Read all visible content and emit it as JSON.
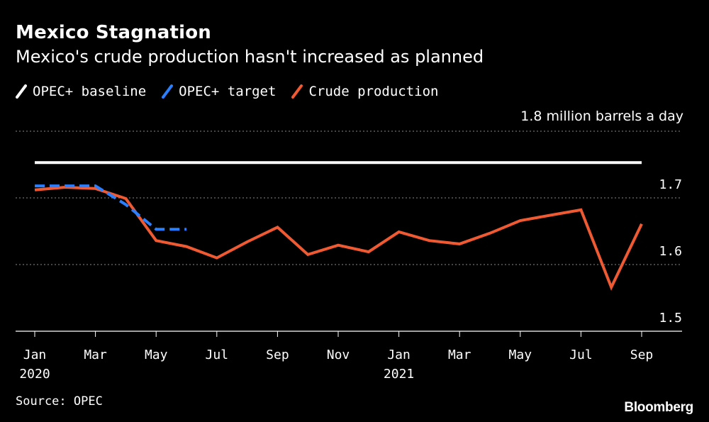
{
  "header": {
    "title": "Mexico Stagnation",
    "subtitle": "Mexico's crude production hasn't increased as planned"
  },
  "legend": [
    {
      "label": "OPEC+ baseline",
      "color": "#ffffff",
      "icon": "slash-line-icon"
    },
    {
      "label": "OPEC+ target",
      "color": "#2a7fff",
      "icon": "slash-line-icon"
    },
    {
      "label": "Crude production",
      "color": "#f05a32",
      "icon": "slash-line-icon"
    }
  ],
  "footer": {
    "source": "Source: OPEC",
    "brand": "Bloomberg"
  },
  "chart_data": {
    "type": "line",
    "title": "Mexico Stagnation",
    "subtitle": "Mexico's crude production hasn't increased as planned",
    "unit_label": "1.8 million barrels a day",
    "ylim": [
      1.5,
      1.8
    ],
    "yticks": [
      1.8,
      1.7,
      1.6,
      1.5
    ],
    "ytick_labels": [
      "",
      "1.7",
      "1.6",
      "1.5"
    ],
    "grid": true,
    "xlim": [
      0,
      20
    ],
    "xticks": [
      {
        "x": 0,
        "label": "Jan",
        "year": "2020"
      },
      {
        "x": 2,
        "label": "Mar",
        "year": ""
      },
      {
        "x": 4,
        "label": "May",
        "year": ""
      },
      {
        "x": 6,
        "label": "Jul",
        "year": ""
      },
      {
        "x": 8,
        "label": "Sep",
        "year": ""
      },
      {
        "x": 10,
        "label": "Nov",
        "year": ""
      },
      {
        "x": 12,
        "label": "Jan",
        "year": "2021"
      },
      {
        "x": 14,
        "label": "Mar",
        "year": ""
      },
      {
        "x": 16,
        "label": "May",
        "year": ""
      },
      {
        "x": 18,
        "label": "Jul",
        "year": ""
      },
      {
        "x": 20,
        "label": "Sep",
        "year": ""
      }
    ],
    "series": [
      {
        "name": "OPEC+ baseline",
        "color": "#ffffff",
        "style": "solid",
        "x": [
          0,
          20
        ],
        "values": [
          1.753,
          1.753
        ]
      },
      {
        "name": "OPEC+ target",
        "color": "#2a7fff",
        "style": "dashed",
        "x": [
          0,
          1,
          2,
          3,
          4,
          5
        ],
        "values": [
          1.718,
          1.718,
          1.718,
          1.69,
          1.653,
          1.653
        ]
      },
      {
        "name": "Crude production",
        "color": "#f05a32",
        "style": "solid",
        "x": [
          0,
          1,
          2,
          3,
          4,
          5,
          6,
          7,
          8,
          9,
          10,
          11,
          12,
          13,
          14,
          15,
          16,
          17,
          18,
          19,
          20
        ],
        "values": [
          1.712,
          1.716,
          1.714,
          1.699,
          1.636,
          1.627,
          1.61,
          1.634,
          1.656,
          1.615,
          1.629,
          1.619,
          1.649,
          1.636,
          1.631,
          1.647,
          1.666,
          1.674,
          1.682,
          1.566,
          1.661
        ]
      }
    ]
  }
}
